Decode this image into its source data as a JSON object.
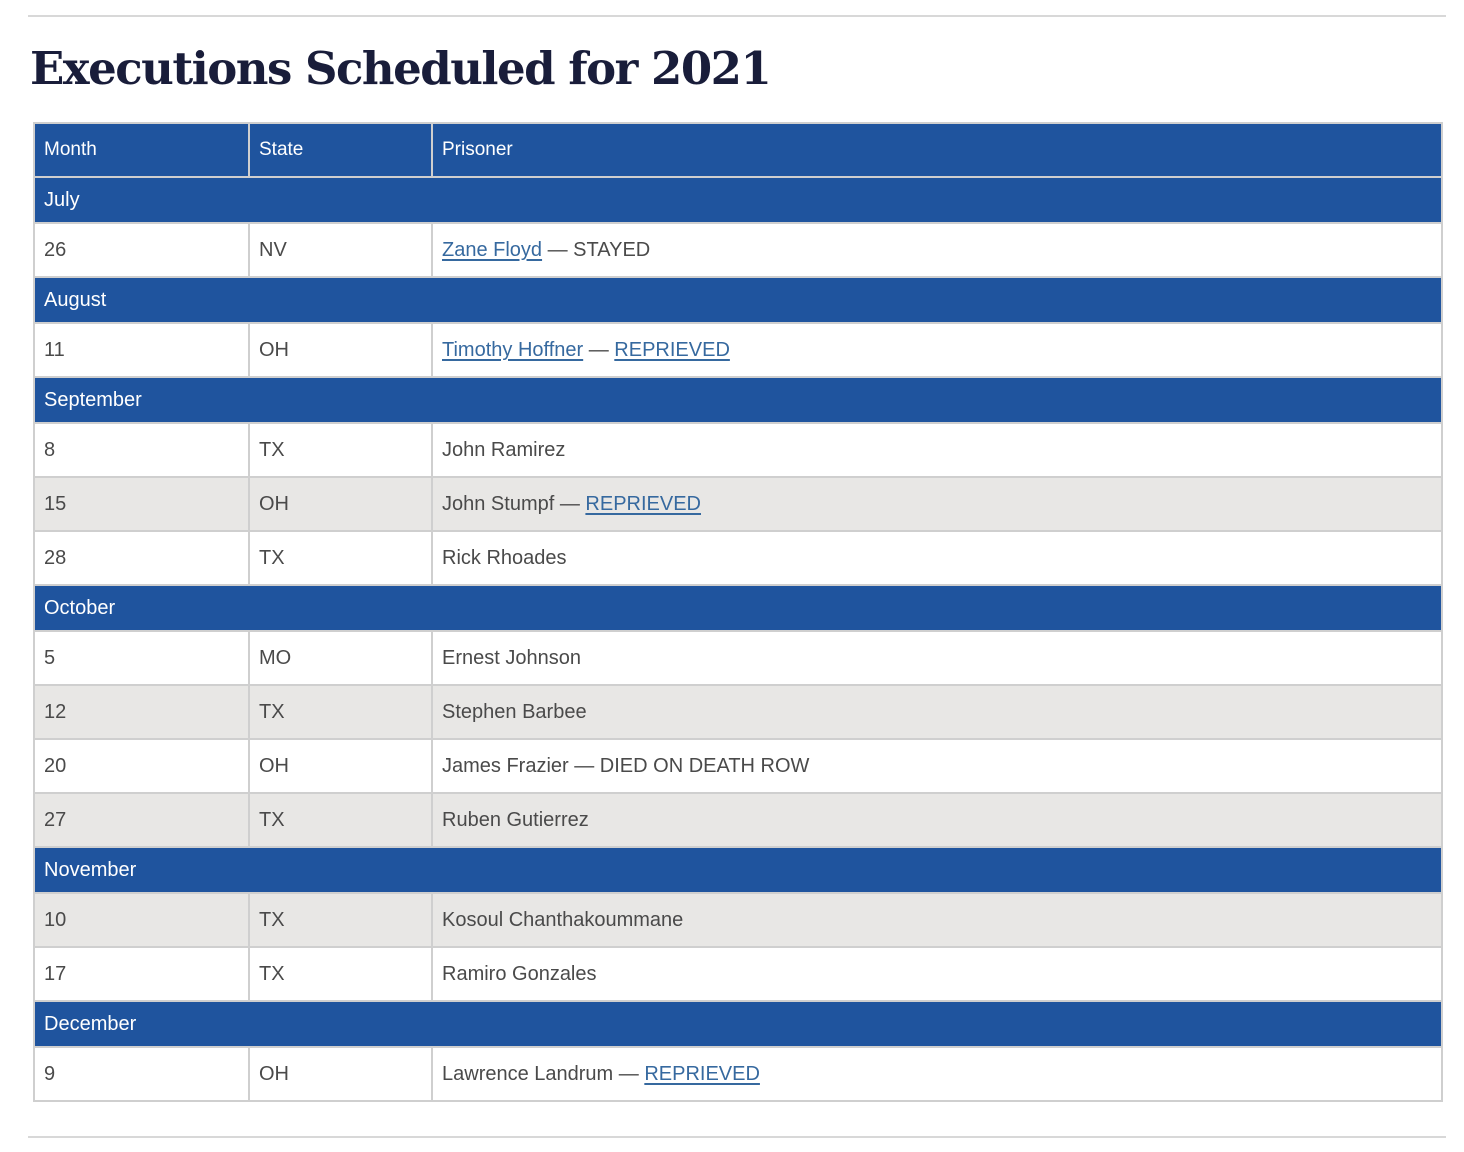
{
  "page": {
    "title": "Executions Scheduled for 2021"
  },
  "colors": {
    "header_blue": "#1f549e",
    "shaded_row_gray": "#e8e7e5",
    "link_blue": "#36699f",
    "title_navy": "#191d3a",
    "body_text_gray": "#4a4a4a",
    "border_gray": "#cfcfcf",
    "rule_gray": "#d8d8d8"
  },
  "table": {
    "columns": [
      "Month",
      "State",
      "Prisoner"
    ],
    "rows": [
      {
        "type": "month",
        "label": "July"
      },
      {
        "type": "data",
        "shaded": false,
        "day": "26",
        "state": "NV",
        "prisoner": [
          {
            "text": "Zane Floyd",
            "link": true
          },
          {
            "text": " — STAYED",
            "link": false
          }
        ]
      },
      {
        "type": "month",
        "label": "August"
      },
      {
        "type": "data",
        "shaded": false,
        "day": "11",
        "state": "OH",
        "prisoner": [
          {
            "text": "Timothy Hoffner",
            "link": true
          },
          {
            "text": " — ",
            "link": false
          },
          {
            "text": "REPRIEVED",
            "link": true
          }
        ]
      },
      {
        "type": "month",
        "label": "September"
      },
      {
        "type": "data",
        "shaded": false,
        "day": "8",
        "state": "TX",
        "prisoner": [
          {
            "text": "John Ramirez",
            "link": false
          }
        ]
      },
      {
        "type": "data",
        "shaded": true,
        "day": "15",
        "state": "OH",
        "prisoner": [
          {
            "text": "John Stumpf — ",
            "link": false
          },
          {
            "text": "REPRIEVED",
            "link": true
          }
        ]
      },
      {
        "type": "data",
        "shaded": false,
        "day": "28",
        "state": "TX",
        "prisoner": [
          {
            "text": "Rick Rhoades",
            "link": false
          }
        ]
      },
      {
        "type": "month",
        "label": "October"
      },
      {
        "type": "data",
        "shaded": false,
        "day": "5",
        "state": "MO",
        "prisoner": [
          {
            "text": "Ernest Johnson",
            "link": false
          }
        ]
      },
      {
        "type": "data",
        "shaded": true,
        "day": "12",
        "state": "TX",
        "prisoner": [
          {
            "text": "Stephen Barbee",
            "link": false
          }
        ]
      },
      {
        "type": "data",
        "shaded": false,
        "day": "20",
        "state": "OH",
        "prisoner": [
          {
            "text": "James Frazier — DIED ON DEATH ROW",
            "link": false
          }
        ]
      },
      {
        "type": "data",
        "shaded": true,
        "day": "27",
        "state": "TX",
        "prisoner": [
          {
            "text": "Ruben Gutierrez",
            "link": false
          }
        ]
      },
      {
        "type": "month",
        "label": "November"
      },
      {
        "type": "data",
        "shaded": true,
        "day": "10",
        "state": "TX",
        "prisoner": [
          {
            "text": "Kosoul Chanthakoummane",
            "link": false
          }
        ]
      },
      {
        "type": "data",
        "shaded": false,
        "day": "17",
        "state": "TX",
        "prisoner": [
          {
            "text": "Ramiro Gonzales",
            "link": false
          }
        ]
      },
      {
        "type": "month",
        "label": "December"
      },
      {
        "type": "data",
        "shaded": false,
        "day": "9",
        "state": "OH",
        "prisoner": [
          {
            "text": "Lawrence Landrum — ",
            "link": false
          },
          {
            "text": "REPRIEVED",
            "link": true
          }
        ]
      }
    ]
  }
}
